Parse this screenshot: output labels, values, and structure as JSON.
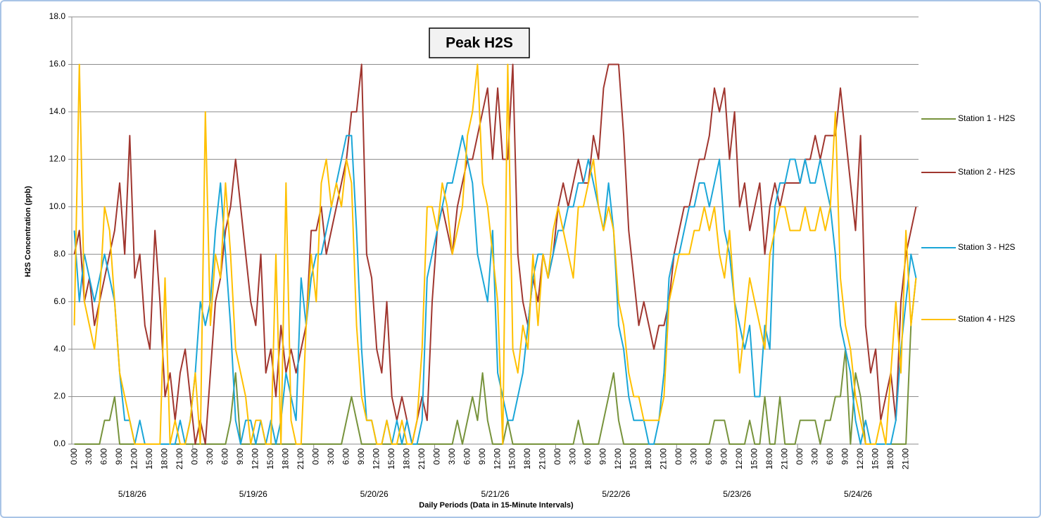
{
  "chart_data": {
    "type": "line",
    "title": "Peak H2S",
    "y_label": "H2S Concentration (ppb)",
    "x_label": "Daily Periods (Data in 15-Minute Intervals)",
    "days": [
      "5/18/26",
      "5/19/26",
      "5/20/26",
      "5/21/26",
      "5/22/26",
      "5/23/26",
      "5/24/26"
    ],
    "categories": [
      "0:00",
      null,
      null,
      "3:00",
      null,
      null,
      "6:00",
      null,
      null,
      "9:00",
      null,
      null,
      "12:00",
      null,
      null,
      "15:00",
      null,
      null,
      "18:00",
      null,
      null,
      "21:00",
      null,
      null,
      "0:00",
      null,
      null,
      "3:00",
      null,
      null,
      "6:00",
      null,
      null,
      "9:00",
      null,
      null,
      "12:00",
      null,
      null,
      "15:00",
      null,
      null,
      "18:00",
      null,
      null,
      "21:00",
      null,
      null,
      "0:00",
      null,
      null,
      "3:00",
      null,
      null,
      "6:00",
      null,
      null,
      "9:00",
      null,
      null,
      "12:00",
      null,
      null,
      "15:00",
      null,
      null,
      "18:00",
      null,
      null,
      "21:00",
      null,
      null,
      "0:00",
      null,
      null,
      "3:00",
      null,
      null,
      "6:00",
      null,
      null,
      "9:00",
      null,
      null,
      "12:00",
      null,
      null,
      "15:00",
      null,
      null,
      "18:00",
      null,
      null,
      "21:00",
      null,
      null,
      "0:00",
      null,
      null,
      "3:00",
      null,
      null,
      "6:00",
      null,
      null,
      "9:00",
      null,
      null,
      "12:00",
      null,
      null,
      "15:00",
      null,
      null,
      "18:00",
      null,
      null,
      "21:00",
      null,
      null,
      "0:00",
      null,
      null,
      "3:00",
      null,
      null,
      "6:00",
      null,
      null,
      "9:00",
      null,
      null,
      "12:00",
      null,
      null,
      "15:00",
      null,
      null,
      "18:00",
      null,
      null,
      "21:00",
      null,
      null,
      "0:00",
      null,
      null,
      "3:00",
      null,
      null,
      "6:00",
      null,
      null,
      "9:00",
      null,
      null,
      "12:00",
      null,
      null,
      "15:00",
      null,
      null,
      "18:00",
      null,
      null,
      "21:00",
      null,
      null
    ],
    "series": [
      {
        "name": "Station 1 - H2S",
        "color": "#77933c",
        "values": [
          0,
          0,
          0,
          0,
          0,
          0,
          1,
          1,
          2,
          0,
          0,
          0,
          0,
          0,
          0,
          0,
          0,
          0,
          0,
          0,
          0,
          0,
          0,
          0,
          0,
          0,
          0,
          0,
          0,
          0,
          0,
          1,
          3,
          0,
          0,
          0,
          0,
          0,
          0,
          0,
          0,
          0,
          0,
          0,
          0,
          0,
          0,
          0,
          0,
          0,
          0,
          0,
          0,
          0,
          1,
          2,
          1,
          0,
          0,
          0,
          0,
          0,
          0,
          0,
          0,
          0,
          0,
          0,
          0,
          0,
          0,
          0,
          0,
          0,
          0,
          0,
          1,
          0,
          1,
          2,
          1,
          3,
          1,
          0,
          0,
          0,
          1,
          0,
          0,
          0,
          0,
          0,
          0,
          0,
          0,
          0,
          0,
          0,
          0,
          0,
          1,
          0,
          0,
          0,
          0,
          1,
          2,
          3,
          1,
          0,
          0,
          0,
          0,
          0,
          0,
          0,
          0,
          0,
          0,
          0,
          0,
          0,
          0,
          0,
          0,
          0,
          0,
          1,
          1,
          1,
          0,
          0,
          0,
          0,
          1,
          0,
          0,
          2,
          0,
          0,
          2,
          0,
          0,
          0,
          1,
          1,
          1,
          1,
          0,
          1,
          1,
          2,
          2,
          4,
          0,
          3,
          2,
          0,
          0,
          0,
          0,
          0,
          0,
          0,
          0,
          0,
          5,
          7
        ]
      },
      {
        "name": "Station 2 - H2S",
        "color": "#a0362f",
        "values": [
          8,
          9,
          6,
          7,
          5,
          6,
          7,
          8,
          9,
          11,
          8,
          13,
          7,
          8,
          5,
          4,
          9,
          6,
          2,
          3,
          1,
          3,
          4,
          2,
          0,
          1,
          0,
          3,
          6,
          7,
          9,
          10,
          12,
          10,
          8,
          6,
          5,
          8,
          3,
          4,
          2,
          5,
          3,
          4,
          3,
          4,
          5,
          9,
          9,
          10,
          8,
          9,
          10,
          11,
          12,
          14,
          14,
          16,
          8,
          7,
          4,
          3,
          6,
          2,
          1,
          2,
          1,
          0,
          1,
          2,
          1,
          6,
          9,
          10,
          9,
          8,
          10,
          11,
          12,
          12,
          13,
          14,
          15,
          12,
          15,
          12,
          12,
          16,
          8,
          6,
          5,
          7,
          6,
          8,
          7,
          8,
          10,
          11,
          10,
          11,
          12,
          11,
          11,
          13,
          12,
          15,
          16,
          16,
          16,
          13,
          9,
          7,
          5,
          6,
          5,
          4,
          5,
          5,
          6,
          8,
          9,
          10,
          10,
          11,
          12,
          12,
          13,
          15,
          14,
          15,
          12,
          14,
          10,
          11,
          9,
          10,
          11,
          8,
          10,
          11,
          10,
          11,
          11,
          11,
          11,
          12,
          12,
          13,
          12,
          13,
          13,
          13,
          15,
          13,
          11,
          9,
          13,
          5,
          3,
          4,
          1,
          2,
          3,
          1,
          6,
          8,
          9,
          10
        ]
      },
      {
        "name": "Station 3 - H2S",
        "color": "#1aa6d8",
        "values": [
          9,
          6,
          8,
          7,
          6,
          7,
          8,
          7,
          6,
          3,
          1,
          1,
          0,
          1,
          0,
          0,
          0,
          0,
          0,
          0,
          0,
          1,
          0,
          1,
          3,
          6,
          5,
          6,
          9,
          11,
          8,
          5,
          1,
          0,
          1,
          1,
          0,
          1,
          0,
          1,
          0,
          1,
          3,
          2,
          1,
          7,
          5,
          7,
          8,
          8,
          9,
          10,
          11,
          12,
          13,
          13,
          9,
          4,
          1,
          1,
          0,
          0,
          1,
          0,
          1,
          0,
          1,
          0,
          0,
          1,
          7,
          8,
          9,
          10,
          11,
          11,
          12,
          13,
          12,
          11,
          8,
          7,
          6,
          9,
          3,
          2,
          1,
          1,
          2,
          3,
          5,
          7,
          8,
          8,
          7,
          8,
          9,
          9,
          10,
          10,
          11,
          11,
          12,
          11,
          10,
          9,
          11,
          9,
          5,
          4,
          2,
          1,
          1,
          1,
          0,
          0,
          1,
          3,
          7,
          8,
          8,
          9,
          10,
          10,
          11,
          11,
          10,
          11,
          12,
          9,
          8,
          6,
          5,
          4,
          5,
          2,
          2,
          5,
          4,
          10,
          11,
          11,
          12,
          12,
          11,
          12,
          11,
          11,
          12,
          11,
          10,
          8,
          5,
          4,
          3,
          1,
          0,
          1,
          0,
          0,
          0,
          0,
          0,
          1,
          4,
          6,
          8,
          7
        ]
      },
      {
        "name": "Station 4 - H2S",
        "color": "#ffc000",
        "values": [
          5,
          16,
          6,
          5,
          4,
          6,
          10,
          9,
          6,
          3,
          2,
          1,
          0,
          0,
          0,
          0,
          0,
          0,
          7,
          0,
          1,
          0,
          0,
          1,
          3,
          0,
          14,
          5,
          8,
          7,
          11,
          8,
          4,
          3,
          2,
          0,
          1,
          1,
          0,
          0,
          8,
          0,
          11,
          1,
          0,
          0,
          5,
          8,
          6,
          11,
          12,
          10,
          11,
          10,
          12,
          11,
          5,
          2,
          1,
          1,
          0,
          0,
          1,
          0,
          0,
          1,
          0,
          0,
          1,
          4,
          10,
          10,
          9,
          11,
          10,
          8,
          9,
          10,
          13,
          14,
          16,
          11,
          10,
          8,
          6,
          0,
          16,
          4,
          3,
          5,
          4,
          8,
          5,
          8,
          7,
          9,
          10,
          9,
          8,
          7,
          10,
          10,
          11,
          12,
          10,
          9,
          10,
          9,
          6,
          5,
          3,
          2,
          2,
          1,
          1,
          1,
          1,
          2,
          6,
          7,
          8,
          8,
          8,
          9,
          9,
          10,
          9,
          10,
          8,
          7,
          9,
          6,
          3,
          5,
          7,
          6,
          5,
          4,
          8,
          9,
          10,
          10,
          9,
          9,
          9,
          10,
          9,
          9,
          10,
          9,
          10,
          14,
          7,
          5,
          4,
          2,
          1,
          0,
          0,
          0,
          1,
          0,
          3,
          6,
          3,
          9,
          5,
          7
        ]
      }
    ],
    "ylim": [
      0,
      18
    ],
    "yticks": [
      {
        "value": 0,
        "label": "0.0"
      },
      {
        "value": 2,
        "label": "2.0"
      },
      {
        "value": 4,
        "label": "4.0"
      },
      {
        "value": 6,
        "label": "6.0"
      },
      {
        "value": 8,
        "label": "8.0"
      },
      {
        "value": 10,
        "label": "10.0"
      },
      {
        "value": 12,
        "label": "12.0"
      },
      {
        "value": 14,
        "label": "14.0"
      },
      {
        "value": 16,
        "label": "16.0"
      },
      {
        "value": 18,
        "label": "18.0"
      }
    ],
    "grid": true,
    "legend": "right"
  }
}
